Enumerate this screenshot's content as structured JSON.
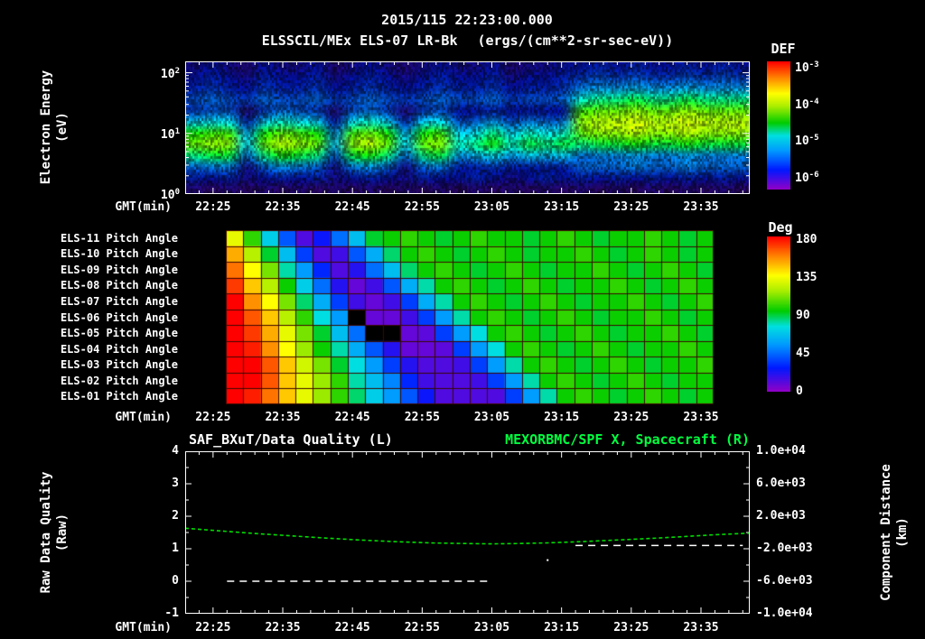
{
  "header": {
    "date_title": "2015/115 22:23:00.000",
    "instrument_title": "ELSSCIL/MEx ELS-07 LR-Bk",
    "units_title": "(ergs/(cm**2-sr-sec-eV))"
  },
  "x_axis": {
    "label": "GMT(min)",
    "tick_labels": [
      "22:25",
      "22:35",
      "22:45",
      "22:55",
      "23:05",
      "23:15",
      "23:25",
      "23:35"
    ],
    "tick_minutes": [
      4,
      14,
      24,
      34,
      44,
      54,
      64,
      74
    ],
    "minor_step_min": 2,
    "range_minutes": [
      0,
      81
    ],
    "t_unit": "minutes after 22:21 GMT"
  },
  "spectrogram": {
    "y_label_line1": "Electron Energy",
    "y_label_line2": "(eV)",
    "y_tick_powers": [
      {
        "base": "10",
        "exp": "2"
      },
      {
        "base": "10",
        "exp": "1"
      },
      {
        "base": "10",
        "exp": "0"
      }
    ],
    "colorbar_title": "DEF",
    "colorbar_tick_powers": [
      {
        "base": "10",
        "exp": "-3"
      },
      {
        "base": "10",
        "exp": "-4"
      },
      {
        "base": "10",
        "exp": "-5"
      },
      {
        "base": "10",
        "exp": "-6"
      }
    ]
  },
  "pitch": {
    "row_labels": [
      "ELS-11 Pitch Angle",
      "ELS-10 Pitch Angle",
      "ELS-09 Pitch Angle",
      "ELS-08 Pitch Angle",
      "ELS-07 Pitch Angle",
      "ELS-06 Pitch Angle",
      "ELS-05 Pitch Angle",
      "ELS-04 Pitch Angle",
      "ELS-03 Pitch Angle",
      "ELS-02 Pitch Angle",
      "ELS-01 Pitch Angle"
    ],
    "colorbar_title": "Deg",
    "colorbar_ticks": [
      "180",
      "135",
      "90",
      "45",
      "0"
    ]
  },
  "quality": {
    "title_left": "SAF_BXuT/Data Quality (L)",
    "title_right": "MEXORBMC/SPF X, Spacecraft (R)",
    "y_label_left_line1": "Raw Data Quality",
    "y_label_left_line2": "(Raw)",
    "y_ticks_left": [
      "4",
      "3",
      "2",
      "1",
      "0",
      "-1"
    ],
    "y_label_right_line1": "Component Distance",
    "y_label_right_line2": "(km)",
    "y_ticks_right": [
      "1.0e+04",
      "6.0e+03",
      "2.0e+03",
      "-2.0e+03",
      "-6.0e+03",
      "-1.0e+04"
    ]
  },
  "colors": {
    "background": "#000000",
    "text": "#ffffff",
    "title_green": "#00ff40",
    "spacecraft_series_green": "#00dd00",
    "quality_series_white": "#ffffff",
    "pitch_grid_line": "#3a0800",
    "rainbow_stops": [
      [
        0.0,
        "#9000c8"
      ],
      [
        0.15,
        "#0018ff"
      ],
      [
        0.3,
        "#0099ff"
      ],
      [
        0.42,
        "#00e0e0"
      ],
      [
        0.52,
        "#00cc00"
      ],
      [
        0.65,
        "#aaee00"
      ],
      [
        0.75,
        "#ffff00"
      ],
      [
        0.87,
        "#ff8800"
      ],
      [
        1.0,
        "#ff0000"
      ]
    ]
  },
  "chart_data": [
    {
      "type": "heatmap",
      "name": "electron_energy_spectrogram",
      "title": "ELSSCIL/MEx ELS-07 LR-Bk",
      "units": "ergs/(cm**2-sr-sec-eV)",
      "xlabel": "GMT(min)",
      "ylabel": "Electron Energy (eV)",
      "x_ticks": [
        "22:25",
        "22:35",
        "22:45",
        "22:55",
        "23:05",
        "23:15",
        "23:25",
        "23:35"
      ],
      "x_range_gmt": [
        "22:21",
        "23:42"
      ],
      "y_scale": "log",
      "y_range_ev": [
        1,
        160
      ],
      "colorbar": {
        "title": "DEF",
        "scale": "log",
        "tick_values": [
          0.001,
          0.0001,
          1e-05,
          1e-06
        ],
        "vmin_log10": -6.5,
        "vmax_log10": -3.1
      },
      "time_step_min": 2.53,
      "energies_ev": [
        140,
        95,
        65,
        45,
        30,
        20,
        14,
        9,
        6,
        4,
        2.5,
        1.5
      ],
      "log10_def": [
        [
          -6.1,
          -6.0,
          -6.1,
          -6.2,
          -6.0,
          -6.1,
          -6.1,
          -6.0,
          -6.2,
          -6.1,
          -6.0,
          -6.1,
          -6.2,
          -6.1,
          -6.0,
          -6.1,
          -6.1,
          -6.0,
          -6.2,
          -6.1,
          -6.1,
          -6.0,
          -6.0,
          -5.9,
          -6.0,
          -5.9,
          -6.0,
          -6.0,
          -5.9,
          -6.0,
          -5.9,
          -6.0
        ],
        [
          -6.0,
          -5.9,
          -6.0,
          -6.1,
          -5.9,
          -6.0,
          -6.0,
          -5.9,
          -6.1,
          -6.0,
          -5.9,
          -6.0,
          -6.1,
          -6.0,
          -5.9,
          -6.0,
          -6.0,
          -5.9,
          -6.1,
          -6.0,
          -6.0,
          -5.9,
          -5.8,
          -5.7,
          -5.8,
          -5.7,
          -5.8,
          -5.8,
          -5.7,
          -5.8,
          -5.7,
          -5.8
        ],
        [
          -5.9,
          -5.8,
          -5.9,
          -6.0,
          -5.8,
          -5.9,
          -5.9,
          -5.8,
          -6.0,
          -5.9,
          -5.8,
          -5.9,
          -6.0,
          -5.9,
          -5.8,
          -5.9,
          -5.9,
          -5.8,
          -6.0,
          -5.9,
          -5.9,
          -5.8,
          -5.5,
          -5.4,
          -5.4,
          -5.3,
          -5.4,
          -5.4,
          -5.3,
          -5.4,
          -5.4,
          -5.4
        ],
        [
          -5.7,
          -5.6,
          -5.7,
          -5.8,
          -5.6,
          -5.7,
          -5.7,
          -5.6,
          -5.8,
          -5.7,
          -5.6,
          -5.7,
          -5.8,
          -5.7,
          -5.6,
          -5.7,
          -5.7,
          -5.6,
          -5.8,
          -5.7,
          -5.7,
          -5.6,
          -5.0,
          -4.9,
          -4.9,
          -4.8,
          -4.9,
          -4.9,
          -4.8,
          -4.9,
          -4.9,
          -4.9
        ],
        [
          -5.8,
          -5.7,
          -5.7,
          -6.2,
          -5.8,
          -5.6,
          -5.7,
          -5.8,
          -6.2,
          -5.7,
          -5.6,
          -5.8,
          -6.2,
          -5.8,
          -5.7,
          -6.0,
          -6.0,
          -5.9,
          -6.0,
          -6.0,
          -6.0,
          -6.0,
          -4.6,
          -4.5,
          -4.5,
          -4.4,
          -4.5,
          -4.5,
          -4.4,
          -4.5,
          -4.5,
          -4.5
        ],
        [
          -5.2,
          -5.1,
          -5.1,
          -5.9,
          -5.2,
          -5.0,
          -5.1,
          -5.2,
          -6.0,
          -5.1,
          -5.0,
          -5.2,
          -5.9,
          -5.2,
          -5.1,
          -5.7,
          -5.6,
          -5.4,
          -5.7,
          -5.5,
          -5.6,
          -5.5,
          -4.4,
          -4.3,
          -4.3,
          -4.2,
          -4.3,
          -4.3,
          -4.2,
          -4.3,
          -4.3,
          -4.3
        ],
        [
          -4.7,
          -4.6,
          -4.6,
          -5.4,
          -4.7,
          -4.5,
          -4.6,
          -4.7,
          -5.5,
          -4.6,
          -4.5,
          -4.7,
          -5.4,
          -4.7,
          -4.6,
          -5.2,
          -5.1,
          -4.9,
          -5.2,
          -5.0,
          -5.1,
          -5.0,
          -4.5,
          -4.4,
          -4.4,
          -4.3,
          -4.4,
          -4.4,
          -4.3,
          -4.4,
          -4.4,
          -4.4
        ],
        [
          -4.5,
          -4.4,
          -4.4,
          -5.2,
          -4.5,
          -4.3,
          -4.4,
          -4.5,
          -5.3,
          -4.4,
          -4.3,
          -4.5,
          -5.2,
          -4.5,
          -4.4,
          -5.0,
          -4.9,
          -4.7,
          -5.0,
          -4.8,
          -4.9,
          -4.8,
          -4.9,
          -4.8,
          -4.8,
          -4.7,
          -4.8,
          -4.8,
          -4.7,
          -4.8,
          -4.8,
          -4.8
        ],
        [
          -4.9,
          -4.8,
          -4.8,
          -5.6,
          -4.9,
          -4.7,
          -4.8,
          -4.9,
          -5.7,
          -4.8,
          -4.7,
          -4.9,
          -5.6,
          -4.9,
          -4.8,
          -5.4,
          -5.3,
          -5.1,
          -5.4,
          -5.2,
          -5.3,
          -5.2,
          -5.6,
          -5.5,
          -5.5,
          -5.4,
          -5.5,
          -5.5,
          -5.4,
          -5.5,
          -5.5,
          -5.5
        ],
        [
          -5.6,
          -5.5,
          -5.5,
          -6.1,
          -5.6,
          -5.4,
          -5.5,
          -5.6,
          -6.1,
          -5.5,
          -5.4,
          -5.6,
          -6.1,
          -5.6,
          -5.5,
          -5.9,
          -5.9,
          -5.8,
          -5.9,
          -5.9,
          -5.9,
          -5.9,
          -5.6,
          -5.6,
          -5.6,
          -5.5,
          -5.6,
          -5.6,
          -5.5,
          -5.6,
          -5.6,
          -5.6
        ],
        [
          -5.9,
          -6.0,
          -5.9,
          -6.1,
          -6.0,
          -5.9,
          -6.0,
          -5.9,
          -6.1,
          -6.0,
          -5.9,
          -6.0,
          -6.1,
          -5.9,
          -6.0,
          -6.0,
          -5.9,
          -6.0,
          -6.1,
          -6.0,
          -5.9,
          -6.0,
          -5.9,
          -6.0,
          -5.9,
          -6.0,
          -5.9,
          -6.0,
          -5.9,
          -6.0,
          -5.9,
          -6.0
        ],
        [
          -6.2,
          -6.3,
          -6.2,
          -6.3,
          -6.2,
          -6.3,
          -6.2,
          -6.3,
          -6.2,
          -6.3,
          -6.2,
          -6.3,
          -6.2,
          -6.3,
          -6.2,
          -6.3,
          -6.2,
          -6.3,
          -6.2,
          -6.3,
          -6.2,
          -6.3,
          -6.2,
          -6.3,
          -6.2,
          -6.3,
          -6.2,
          -6.3,
          -6.2,
          -6.3,
          -6.2,
          -6.3
        ]
      ]
    },
    {
      "type": "heatmap",
      "name": "pitch_angle_grid",
      "row_labels": [
        "ELS-11",
        "ELS-10",
        "ELS-09",
        "ELS-08",
        "ELS-07",
        "ELS-06",
        "ELS-05",
        "ELS-04",
        "ELS-03",
        "ELS-02",
        "ELS-01"
      ],
      "colorbar": {
        "title": "Deg",
        "vmin": 0,
        "vmax": 180,
        "ticks": [
          180,
          135,
          90,
          45,
          0
        ]
      },
      "x_ticks": [
        "22:25",
        "22:35",
        "22:45",
        "22:55",
        "23:05",
        "23:15",
        "23:25",
        "23:35"
      ],
      "time_start_min": 5.8,
      "time_step_min": 2.5,
      "null_is_no_data": true,
      "pitch_deg": [
        [
          130,
          100,
          70,
          40,
          12,
          25,
          45,
          65,
          90,
          95,
          100,
          95,
          90,
          95,
          100,
          95,
          95,
          90,
          95,
          100,
          95,
          90,
          95,
          95,
          100,
          95,
          90,
          95
        ],
        [
          150,
          120,
          90,
          65,
          35,
          12,
          15,
          40,
          60,
          85,
          95,
          100,
          95,
          90,
          95,
          100,
          95,
          90,
          95,
          95,
          100,
          95,
          90,
          95,
          100,
          95,
          90,
          95
        ],
        [
          160,
          135,
          110,
          80,
          55,
          30,
          12,
          20,
          45,
          65,
          85,
          95,
          100,
          95,
          90,
          95,
          100,
          95,
          90,
          95,
          95,
          100,
          95,
          90,
          95,
          100,
          95,
          90
        ],
        [
          170,
          145,
          120,
          95,
          70,
          45,
          20,
          8,
          15,
          40,
          60,
          80,
          95,
          100,
          95,
          90,
          95,
          100,
          95,
          90,
          95,
          95,
          100,
          95,
          90,
          95,
          100,
          95
        ],
        [
          180,
          155,
          135,
          110,
          85,
          60,
          35,
          15,
          8,
          15,
          35,
          60,
          80,
          95,
          100,
          95,
          90,
          95,
          100,
          95,
          90,
          95,
          95,
          100,
          95,
          90,
          95,
          100
        ],
        [
          180,
          165,
          145,
          120,
          100,
          75,
          55,
          null,
          8,
          8,
          15,
          35,
          55,
          80,
          95,
          100,
          95,
          90,
          95,
          100,
          95,
          90,
          95,
          95,
          100,
          95,
          90,
          95
        ],
        [
          180,
          170,
          150,
          130,
          110,
          90,
          65,
          45,
          null,
          null,
          8,
          10,
          35,
          55,
          75,
          95,
          100,
          95,
          90,
          95,
          100,
          95,
          90,
          95,
          95,
          100,
          95,
          90
        ],
        [
          180,
          175,
          155,
          135,
          115,
          95,
          80,
          60,
          40,
          20,
          8,
          8,
          10,
          35,
          55,
          75,
          95,
          100,
          95,
          90,
          95,
          100,
          95,
          90,
          95,
          95,
          100,
          95
        ],
        [
          180,
          180,
          165,
          145,
          125,
          110,
          90,
          75,
          55,
          35,
          20,
          12,
          12,
          15,
          35,
          55,
          80,
          95,
          100,
          95,
          90,
          95,
          100,
          95,
          90,
          95,
          95,
          100
        ],
        [
          180,
          180,
          165,
          145,
          130,
          115,
          100,
          80,
          65,
          50,
          30,
          15,
          12,
          12,
          15,
          35,
          55,
          80,
          95,
          100,
          95,
          90,
          95,
          100,
          95,
          90,
          95,
          95
        ],
        [
          180,
          175,
          160,
          145,
          130,
          115,
          100,
          85,
          70,
          55,
          40,
          25,
          12,
          12,
          12,
          12,
          35,
          55,
          80,
          95,
          100,
          95,
          90,
          95,
          100,
          95,
          90,
          95
        ]
      ]
    },
    {
      "type": "line",
      "name": "quality_and_spacecraft_x",
      "title_left": "SAF_BXuT/Data Quality (L)",
      "title_right": "MEXORBMC/SPF X, Spacecraft (R)",
      "xlabel": "GMT(min)",
      "ylabel_left": "Raw Data Quality (Raw)",
      "ylabel_right": "Component Distance (km)",
      "ylim_left": [
        -1,
        4
      ],
      "ylim_right": [
        -10000,
        10000
      ],
      "series": [
        {
          "name": "MEXORBMC/SPF X Spacecraft",
          "axis": "right",
          "color": "#00dd00",
          "line_style": "dashed",
          "t_min": [
            0,
            5,
            10,
            15,
            20,
            25,
            30,
            35,
            40,
            44,
            48,
            52,
            56,
            60,
            64,
            68,
            72,
            76,
            81
          ],
          "km": [
            520,
            200,
            -120,
            -400,
            -680,
            -920,
            -1120,
            -1280,
            -1360,
            -1400,
            -1360,
            -1280,
            -1160,
            -1000,
            -840,
            -680,
            -480,
            -280,
            -80
          ]
        },
        {
          "name": "SAF_BXuT Data Quality",
          "axis": "left",
          "color": "#ffffff",
          "line_style": "dashed",
          "segments": [
            {
              "t_min": [
                6,
                44
              ],
              "value": 0
            },
            {
              "t_min": [
                56,
                80
              ],
              "value": 1.1
            }
          ],
          "stray_point": {
            "t_min": 52,
            "value": 0.65
          }
        }
      ]
    }
  ]
}
